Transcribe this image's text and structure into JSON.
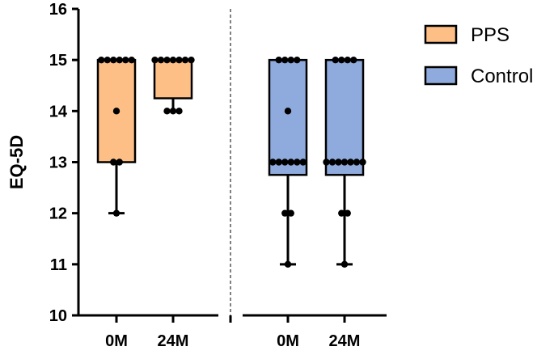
{
  "chart_data": {
    "type": "box",
    "title": "",
    "xlabel": "",
    "ylabel": "EQ-5D",
    "ylim": [
      10,
      16
    ],
    "yticks": [
      "10",
      "11",
      "12",
      "13",
      "14",
      "15",
      "16"
    ],
    "categories": [
      "0M",
      "24M",
      "0M",
      "24M"
    ],
    "grid": false,
    "legend_position": "top-right",
    "series": [
      {
        "name": "PPS",
        "color": "#FDBF86",
        "boxes": [
          {
            "label": "0M",
            "min": 12,
            "q1": 13,
            "median": 15,
            "q3": 15,
            "max": 15,
            "points": [
              15,
              15,
              15,
              15,
              15,
              15,
              14,
              13,
              13,
              12
            ]
          },
          {
            "label": "24M",
            "min": 14,
            "q1": 14.25,
            "median": 15,
            "q3": 15,
            "max": 15,
            "points": [
              15,
              15,
              15,
              15,
              15,
              15,
              15,
              14,
              14,
              14
            ]
          }
        ]
      },
      {
        "name": "Control",
        "color": "#8FAADC",
        "boxes": [
          {
            "label": "0M",
            "min": 11,
            "q1": 12.75,
            "median": 13,
            "q3": 15,
            "max": 15,
            "points": [
              15,
              15,
              15,
              15,
              14,
              13,
              13,
              13,
              13,
              13,
              13,
              12,
              12,
              11
            ]
          },
          {
            "label": "24M",
            "min": 11,
            "q1": 12.75,
            "median": 13,
            "q3": 15,
            "max": 15,
            "points": [
              15,
              15,
              15,
              15,
              13,
              13,
              13,
              13,
              13,
              13,
              13,
              12,
              12,
              11
            ]
          }
        ]
      }
    ]
  }
}
